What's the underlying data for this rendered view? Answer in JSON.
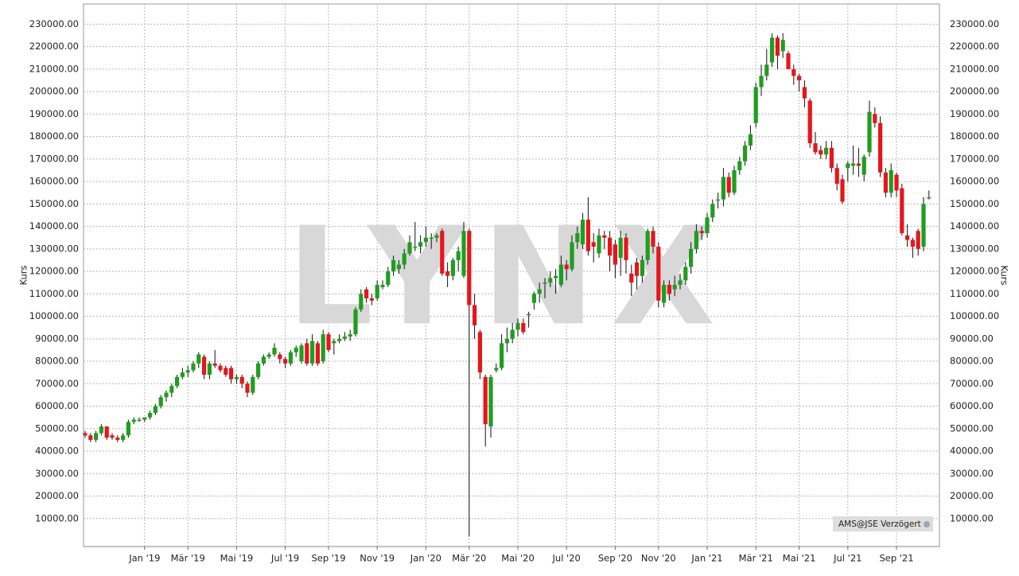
{
  "chart_data": {
    "type": "candlestick",
    "watermark": "LYNX",
    "ylabel": "Kurs",
    "source_note": "AMS@JSE Verzögert",
    "up_color": "#1e9e1e",
    "down_color": "#e8141c",
    "grid": true,
    "ylim": [
      0,
      239000
    ],
    "yticks": [
      {
        "value": 10000,
        "label": "10000.00"
      },
      {
        "value": 20000,
        "label": "20000.00"
      },
      {
        "value": 30000,
        "label": "30000.00"
      },
      {
        "value": 40000,
        "label": "40000.00"
      },
      {
        "value": 50000,
        "label": "50000.00"
      },
      {
        "value": 60000,
        "label": "60000.00"
      },
      {
        "value": 70000,
        "label": "70000.00"
      },
      {
        "value": 80000,
        "label": "80000.00"
      },
      {
        "value": 90000,
        "label": "90000.00"
      },
      {
        "value": 100000,
        "label": "100000.00"
      },
      {
        "value": 110000,
        "label": "110000.00"
      },
      {
        "value": 120000,
        "label": "120000.00"
      },
      {
        "value": 130000,
        "label": "130000.00"
      },
      {
        "value": 140000,
        "label": "140000.00"
      },
      {
        "value": 150000,
        "label": "150000.00"
      },
      {
        "value": 160000,
        "label": "160000.00"
      },
      {
        "value": 170000,
        "label": "170000.00"
      },
      {
        "value": 180000,
        "label": "180000.00"
      },
      {
        "value": 190000,
        "label": "190000.00"
      },
      {
        "value": 200000,
        "label": "200000.00"
      },
      {
        "value": 210000,
        "label": "210000.00"
      },
      {
        "value": 220000,
        "label": "220000.00"
      },
      {
        "value": 230000,
        "label": "230000.00"
      }
    ],
    "categories": [
      null,
      null,
      null,
      null,
      null,
      null,
      null,
      null,
      null,
      null,
      null,
      "Jan '19",
      null,
      null,
      null,
      null,
      null,
      null,
      null,
      "Mär '19",
      null,
      null,
      null,
      null,
      null,
      null,
      null,
      null,
      "Mai '19",
      null,
      null,
      null,
      null,
      null,
      null,
      null,
      null,
      "Jul '19",
      null,
      null,
      null,
      null,
      null,
      null,
      null,
      "Sep '19",
      null,
      null,
      null,
      null,
      null,
      null,
      null,
      null,
      "Nov '19",
      null,
      null,
      null,
      null,
      null,
      null,
      null,
      null,
      "Jan '20",
      null,
      null,
      null,
      null,
      null,
      null,
      null,
      "Mär '20",
      null,
      null,
      null,
      null,
      null,
      null,
      null,
      null,
      "Mai '20",
      null,
      null,
      null,
      null,
      null,
      null,
      null,
      null,
      "Jul '20",
      null,
      null,
      null,
      null,
      null,
      null,
      null,
      null,
      "Sep '20",
      null,
      null,
      null,
      null,
      null,
      null,
      null,
      "Nov '20",
      null,
      null,
      null,
      null,
      null,
      null,
      null,
      null,
      "Jan '21",
      null,
      null,
      null,
      null,
      null,
      null,
      null,
      null,
      "Mär '21",
      null,
      null,
      null,
      null,
      null,
      null,
      null,
      "Mai '21",
      null,
      null,
      null,
      null,
      null,
      null,
      null,
      null,
      "Jul '21",
      null,
      null,
      null,
      null,
      null,
      null,
      null,
      null,
      "Sep '21",
      null,
      null,
      null,
      null,
      null,
      null
    ],
    "ohlc": [
      [
        48000,
        49000,
        46000,
        47000
      ],
      [
        47000,
        48000,
        44000,
        45000
      ],
      [
        45000,
        49000,
        44000,
        48000
      ],
      [
        48000,
        52000,
        47000,
        51000
      ],
      [
        51000,
        51000,
        45000,
        46000
      ],
      [
        47000,
        48000,
        45000,
        46000
      ],
      [
        46000,
        47000,
        44000,
        45000
      ],
      [
        45000,
        48000,
        44000,
        47000
      ],
      [
        47000,
        54000,
        46000,
        53000
      ],
      [
        53000,
        55000,
        52000,
        54000
      ],
      [
        54000,
        55000,
        53000,
        54000
      ],
      [
        54000,
        55000,
        53000,
        55000
      ],
      [
        55000,
        58000,
        54000,
        57000
      ],
      [
        57000,
        61000,
        56000,
        60000
      ],
      [
        60000,
        65000,
        59000,
        64000
      ],
      [
        64000,
        67000,
        62000,
        66000
      ],
      [
        66000,
        70000,
        64000,
        69000
      ],
      [
        69000,
        74000,
        68000,
        73000
      ],
      [
        73000,
        77000,
        72000,
        75000
      ],
      [
        75000,
        78000,
        73000,
        76000
      ],
      [
        76000,
        80000,
        75000,
        79000
      ],
      [
        79000,
        84000,
        77000,
        83000
      ],
      [
        82000,
        83000,
        72000,
        74000
      ],
      [
        74000,
        80000,
        72000,
        79000
      ],
      [
        79000,
        85000,
        77000,
        78000
      ],
      [
        78000,
        79000,
        75000,
        76000
      ],
      [
        77000,
        78000,
        73000,
        74000
      ],
      [
        77000,
        78000,
        70000,
        72000
      ],
      [
        72000,
        74000,
        70000,
        73000
      ],
      [
        73000,
        74000,
        68000,
        70000
      ],
      [
        70000,
        71000,
        64000,
        66000
      ],
      [
        66000,
        74000,
        65000,
        73000
      ],
      [
        73000,
        80000,
        72000,
        79000
      ],
      [
        79000,
        83000,
        78000,
        82000
      ],
      [
        82000,
        84000,
        81000,
        83000
      ],
      [
        83000,
        88000,
        82000,
        86000
      ],
      [
        83000,
        84000,
        79000,
        81000
      ],
      [
        81000,
        82000,
        77000,
        79000
      ],
      [
        79000,
        85000,
        78000,
        84000
      ],
      [
        84000,
        87000,
        82000,
        86000
      ],
      [
        80000,
        88000,
        79000,
        87000
      ],
      [
        88000,
        90000,
        78000,
        79000
      ],
      [
        79000,
        92000,
        78000,
        89000
      ],
      [
        88000,
        89000,
        78000,
        79000
      ],
      [
        80000,
        94000,
        79000,
        92000
      ],
      [
        92000,
        93000,
        84000,
        85000
      ],
      [
        88000,
        90000,
        83000,
        89000
      ],
      [
        89000,
        92000,
        88000,
        90000
      ],
      [
        90000,
        93000,
        89000,
        91000
      ],
      [
        91000,
        94000,
        89000,
        92000
      ],
      [
        92000,
        104000,
        91000,
        103000
      ],
      [
        103000,
        112000,
        102000,
        110000
      ],
      [
        112000,
        113000,
        106000,
        108000
      ],
      [
        108000,
        110000,
        105000,
        107000
      ],
      [
        108000,
        116000,
        107000,
        114000
      ],
      [
        113000,
        116000,
        112000,
        114000
      ],
      [
        114000,
        122000,
        113000,
        120000
      ],
      [
        120000,
        127000,
        118000,
        125000
      ],
      [
        121000,
        125000,
        119000,
        123000
      ],
      [
        123000,
        130000,
        121000,
        128000
      ],
      [
        128000,
        136000,
        127000,
        133000
      ],
      [
        131000,
        142000,
        129000,
        131000
      ],
      [
        131000,
        136000,
        128000,
        133000
      ],
      [
        133000,
        140000,
        131000,
        135000
      ],
      [
        135000,
        137000,
        130000,
        135000
      ],
      [
        135000,
        137000,
        133000,
        136000
      ],
      [
        138000,
        139000,
        118000,
        119000
      ],
      [
        120000,
        124000,
        113000,
        118000
      ],
      [
        118000,
        126000,
        116000,
        125000
      ],
      [
        125000,
        131000,
        120000,
        129000
      ],
      [
        118000,
        142000,
        117000,
        138000
      ],
      [
        138000,
        139000,
        2000,
        105000
      ],
      [
        105000,
        110000,
        90000,
        96000
      ],
      [
        93000,
        94000,
        72000,
        75000
      ],
      [
        73000,
        74000,
        42000,
        52000
      ],
      [
        51000,
        74000,
        46000,
        73000
      ],
      [
        76000,
        79000,
        75000,
        77000
      ],
      [
        77000,
        92000,
        76000,
        88000
      ],
      [
        88000,
        95000,
        84000,
        90000
      ],
      [
        90000,
        97000,
        88000,
        94000
      ],
      [
        94000,
        99000,
        91000,
        97000
      ],
      [
        97000,
        99000,
        92000,
        93000
      ],
      [
        101000,
        102000,
        95000,
        101000
      ],
      [
        106000,
        111000,
        103000,
        110000
      ],
      [
        110000,
        115000,
        106000,
        112000
      ],
      [
        115000,
        117000,
        108000,
        115000
      ],
      [
        115000,
        120000,
        113000,
        117000
      ],
      [
        117000,
        121000,
        110000,
        118000
      ],
      [
        114000,
        127000,
        113000,
        123000
      ],
      [
        123000,
        125000,
        116000,
        121000
      ],
      [
        121000,
        136000,
        120000,
        133000
      ],
      [
        133000,
        140000,
        130000,
        137000
      ],
      [
        132000,
        146000,
        130000,
        143000
      ],
      [
        143000,
        153000,
        127000,
        129000
      ],
      [
        133000,
        137000,
        124000,
        131000
      ],
      [
        128000,
        139000,
        126000,
        136000
      ],
      [
        136000,
        138000,
        130000,
        135000
      ],
      [
        135000,
        138000,
        120000,
        127000
      ],
      [
        132000,
        134000,
        117000,
        123000
      ],
      [
        126000,
        138000,
        118000,
        135000
      ],
      [
        135000,
        137000,
        119000,
        125000
      ],
      [
        119000,
        123000,
        109000,
        115000
      ],
      [
        124000,
        126000,
        112000,
        118000
      ],
      [
        118000,
        127000,
        115000,
        125000
      ],
      [
        125000,
        139000,
        123000,
        138000
      ],
      [
        138000,
        140000,
        128000,
        131000
      ],
      [
        131000,
        133000,
        104000,
        107000
      ],
      [
        106000,
        116000,
        104000,
        114000
      ],
      [
        114000,
        116000,
        107000,
        110000
      ],
      [
        112000,
        118000,
        109000,
        114000
      ],
      [
        114000,
        119000,
        112000,
        116000
      ],
      [
        116000,
        124000,
        114000,
        122000
      ],
      [
        122000,
        133000,
        119000,
        130000
      ],
      [
        130000,
        141000,
        128000,
        138000
      ],
      [
        138000,
        140000,
        134000,
        137000
      ],
      [
        137000,
        146000,
        135000,
        144000
      ],
      [
        144000,
        152000,
        142000,
        150000
      ],
      [
        152000,
        155000,
        148000,
        152000
      ],
      [
        152000,
        166000,
        149000,
        162000
      ],
      [
        162000,
        164000,
        153000,
        155000
      ],
      [
        155000,
        167000,
        154000,
        165000
      ],
      [
        165000,
        171000,
        163000,
        169000
      ],
      [
        169000,
        178000,
        167000,
        176000
      ],
      [
        176000,
        185000,
        174000,
        181000
      ],
      [
        186000,
        204000,
        184000,
        202000
      ],
      [
        202000,
        212000,
        198000,
        207000
      ],
      [
        207000,
        219000,
        205000,
        212000
      ],
      [
        213000,
        226000,
        211000,
        224000
      ],
      [
        224000,
        225000,
        210000,
        216000
      ],
      [
        218000,
        226000,
        215000,
        223000
      ],
      [
        217000,
        218000,
        210000,
        210000
      ],
      [
        210000,
        212000,
        203000,
        207000
      ],
      [
        207000,
        208000,
        200000,
        205000
      ],
      [
        202000,
        205000,
        193000,
        197000
      ],
      [
        196000,
        197000,
        175000,
        177000
      ],
      [
        177000,
        182000,
        172000,
        173000
      ],
      [
        174000,
        176000,
        170000,
        172000
      ],
      [
        172000,
        178000,
        170000,
        175000
      ],
      [
        175000,
        178000,
        164000,
        166000
      ],
      [
        166000,
        168000,
        156000,
        159000
      ],
      [
        161000,
        163000,
        150000,
        151000
      ],
      [
        166000,
        169000,
        160000,
        168000
      ],
      [
        167000,
        176000,
        163000,
        168000
      ],
      [
        168000,
        175000,
        162000,
        167000
      ],
      [
        163000,
        172000,
        160000,
        171000
      ],
      [
        173000,
        196000,
        171000,
        191000
      ],
      [
        190000,
        193000,
        184000,
        186000
      ],
      [
        186000,
        189000,
        162000,
        164000
      ],
      [
        164000,
        166000,
        153000,
        155000
      ],
      [
        155000,
        168000,
        153000,
        165000
      ],
      [
        163000,
        164000,
        153000,
        156000
      ],
      [
        157000,
        159000,
        136000,
        137000
      ],
      [
        136000,
        141000,
        131000,
        134000
      ],
      [
        134000,
        135000,
        126000,
        131000
      ],
      [
        138000,
        139000,
        127000,
        130000
      ],
      [
        131000,
        153000,
        129000,
        150000
      ],
      [
        153000,
        156000,
        152000,
        153000
      ]
    ]
  }
}
